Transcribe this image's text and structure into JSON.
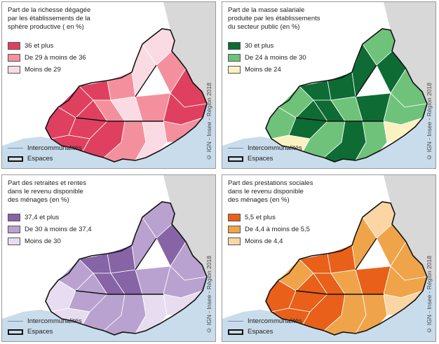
{
  "panels": [
    {
      "title": "Part de la richesse dégagée\npar les établissements de la\nsphère productive ( en %)",
      "legend": [
        {
          "label": "36 et plus",
          "color": "#e0405f"
        },
        {
          "label": "De 29 à moins de 36",
          "color": "#f4909e"
        },
        {
          "label": "Moins de 29",
          "color": "#fbdbe3"
        }
      ],
      "intercommunalites": "Intercommunalités",
      "espaces": "Espaces",
      "credit": "© IGN - Insee - Région 2018"
    },
    {
      "title": "Part de la masse salariale\nproduite par les établissements\ndu secteur public (en %)",
      "legend": [
        {
          "label": "30 et plus",
          "color": "#0e6b34"
        },
        {
          "label": "De 24 à moins de 30",
          "color": "#6fc27a"
        },
        {
          "label": "Moins de 24",
          "color": "#fbf2c2"
        }
      ],
      "intercommunalites": "Intercommunalités",
      "espaces": "Espaces",
      "credit": "© IGN - Insee - Région 2018"
    },
    {
      "title": "Part des retraites et rentes\ndans le revenu disponible\ndes ménages (en %)",
      "legend": [
        {
          "label": "37,4 et plus",
          "color": "#8664a6"
        },
        {
          "label": "De 30 à moins de 37,4",
          "color": "#b9a2cf"
        },
        {
          "label": "Moins de 30",
          "color": "#e8ddf0"
        }
      ],
      "intercommunalites": "Intercommunalités",
      "espaces": "Espaces",
      "credit": "© IGN - Insee - Région 2018"
    },
    {
      "title": "Part des prestations sociales\ndans le revenu disponible\ndes ménages (en %)",
      "legend": [
        {
          "label": "5,5 et plus",
          "color": "#e8601a"
        },
        {
          "label": "De 4,4 à moins de 5,5",
          "color": "#f0a44a"
        },
        {
          "label": "Moins de 4,4",
          "color": "#fbd6a4"
        }
      ],
      "intercommunalites": "Intercommunalités",
      "espaces": "Espaces",
      "credit": "© IGN - Insee - Région 2018"
    }
  ],
  "base_colors": {
    "land": "#d8d8d8",
    "sea": "#c9dceb",
    "border": "#ffffff",
    "space_border": "#111111"
  }
}
